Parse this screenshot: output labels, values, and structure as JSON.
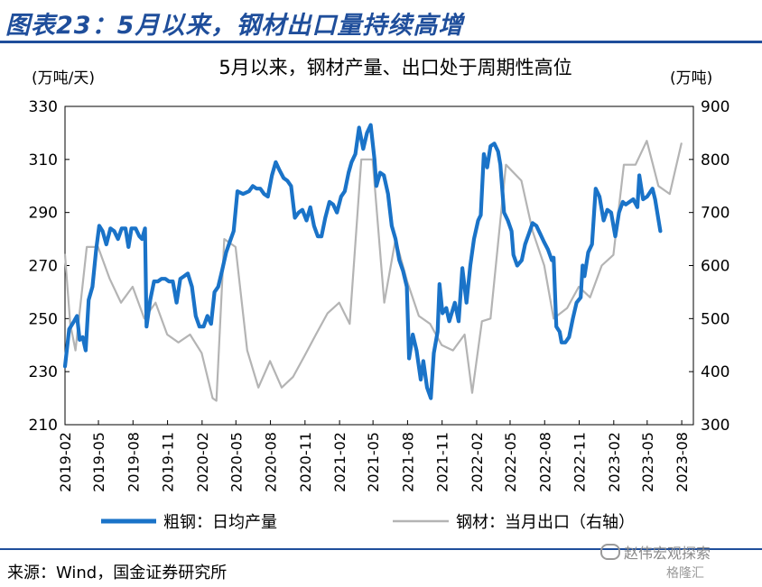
{
  "figure": {
    "title": "图表23：5月以来，钢材出口量持续高增",
    "source": "来源：Wind，国金证券研究所",
    "watermark": "赵伟宏观探索",
    "watermark2": "格隆汇"
  },
  "colors": {
    "steel_output": "#1a73c8",
    "steel_export": "#b4b4b4",
    "title": "#1f4e9b"
  },
  "chart_data": {
    "type": "line",
    "title": "5月以来，钢材产量、出口处于周期性高位",
    "y_left_unit": "(万吨/天)",
    "y_right_unit": "(万吨)",
    "y_left_lim": [
      210,
      330
    ],
    "y_left_ticks": [
      "210",
      "230",
      "250",
      "270",
      "290",
      "310",
      "330"
    ],
    "y_right_lim": [
      300,
      900
    ],
    "y_right_ticks": [
      "300",
      "400",
      "500",
      "600",
      "700",
      "800",
      "900"
    ],
    "x_lim": [
      "2019-02",
      "2023-09"
    ],
    "x_ticks": [
      "2019-02",
      "2019-05",
      "2019-08",
      "2019-11",
      "2020-02",
      "2020-05",
      "2020-08",
      "2020-11",
      "2021-02",
      "2021-05",
      "2021-08",
      "2021-11",
      "2022-02",
      "2022-05",
      "2022-08",
      "2022-11",
      "2023-02",
      "2023-05",
      "2023-08"
    ],
    "grid": false,
    "legend": "bottom",
    "series": [
      {
        "name": "粗钢：日均产量",
        "axis": "left",
        "points": [
          [
            "2019-02-01",
            232
          ],
          [
            "2019-02-12",
            246
          ],
          [
            "2019-02-25",
            249
          ],
          [
            "2019-03-05",
            251
          ],
          [
            "2019-03-12",
            242
          ],
          [
            "2019-03-20",
            243
          ],
          [
            "2019-03-28",
            238
          ],
          [
            "2019-04-05",
            257
          ],
          [
            "2019-04-15",
            262
          ],
          [
            "2019-04-25",
            276
          ],
          [
            "2019-05-03",
            285
          ],
          [
            "2019-05-12",
            283
          ],
          [
            "2019-05-22",
            278
          ],
          [
            "2019-06-02",
            284
          ],
          [
            "2019-06-12",
            283
          ],
          [
            "2019-06-22",
            280
          ],
          [
            "2019-07-02",
            284
          ],
          [
            "2019-07-12",
            284
          ],
          [
            "2019-07-20",
            277
          ],
          [
            "2019-07-28",
            284
          ],
          [
            "2019-08-08",
            284
          ],
          [
            "2019-08-18",
            281
          ],
          [
            "2019-08-25",
            280
          ],
          [
            "2019-09-02",
            284
          ],
          [
            "2019-09-06",
            247
          ],
          [
            "2019-09-16",
            257
          ],
          [
            "2019-09-26",
            264
          ],
          [
            "2019-10-06",
            264
          ],
          [
            "2019-10-16",
            265
          ],
          [
            "2019-10-26",
            265
          ],
          [
            "2019-11-05",
            264
          ],
          [
            "2019-11-15",
            264
          ],
          [
            "2019-11-25",
            256
          ],
          [
            "2019-12-05",
            265
          ],
          [
            "2019-12-15",
            266
          ],
          [
            "2019-12-25",
            267
          ],
          [
            "2020-01-05",
            262
          ],
          [
            "2020-01-15",
            251
          ],
          [
            "2020-01-25",
            247
          ],
          [
            "2020-02-05",
            247
          ],
          [
            "2020-02-15",
            251
          ],
          [
            "2020-02-25",
            248
          ],
          [
            "2020-03-05",
            260
          ],
          [
            "2020-03-15",
            262
          ],
          [
            "2020-03-25",
            268
          ],
          [
            "2020-04-05",
            275
          ],
          [
            "2020-04-15",
            279
          ],
          [
            "2020-04-25",
            283
          ],
          [
            "2020-05-05",
            298
          ],
          [
            "2020-05-20",
            297
          ],
          [
            "2020-06-05",
            298
          ],
          [
            "2020-06-15",
            300
          ],
          [
            "2020-06-25",
            299
          ],
          [
            "2020-07-05",
            299
          ],
          [
            "2020-07-15",
            297
          ],
          [
            "2020-07-25",
            296
          ],
          [
            "2020-08-05",
            304
          ],
          [
            "2020-08-15",
            309
          ],
          [
            "2020-08-25",
            306
          ],
          [
            "2020-09-05",
            303
          ],
          [
            "2020-09-15",
            302
          ],
          [
            "2020-09-25",
            300
          ],
          [
            "2020-10-05",
            288
          ],
          [
            "2020-10-15",
            290
          ],
          [
            "2020-10-25",
            291
          ],
          [
            "2020-11-05",
            287
          ],
          [
            "2020-11-15",
            292
          ],
          [
            "2020-11-25",
            285
          ],
          [
            "2020-12-05",
            281
          ],
          [
            "2020-12-15",
            281
          ],
          [
            "2020-12-25",
            288
          ],
          [
            "2021-01-05",
            294
          ],
          [
            "2021-01-15",
            293
          ],
          [
            "2021-01-25",
            290
          ],
          [
            "2021-02-05",
            296
          ],
          [
            "2021-02-15",
            298
          ],
          [
            "2021-02-25",
            305
          ],
          [
            "2021-03-05",
            309
          ],
          [
            "2021-03-15",
            312
          ],
          [
            "2021-03-25",
            322
          ],
          [
            "2021-04-05",
            314
          ],
          [
            "2021-04-15",
            320
          ],
          [
            "2021-04-25",
            323
          ],
          [
            "2021-05-05",
            310
          ],
          [
            "2021-05-10",
            300
          ],
          [
            "2021-05-20",
            305
          ],
          [
            "2021-05-30",
            304
          ],
          [
            "2021-06-10",
            297
          ],
          [
            "2021-06-20",
            285
          ],
          [
            "2021-06-30",
            280
          ],
          [
            "2021-07-10",
            272
          ],
          [
            "2021-07-20",
            268
          ],
          [
            "2021-07-30",
            262
          ],
          [
            "2021-08-05",
            235
          ],
          [
            "2021-08-15",
            244
          ],
          [
            "2021-08-25",
            238
          ],
          [
            "2021-09-05",
            227
          ],
          [
            "2021-09-12",
            234
          ],
          [
            "2021-09-22",
            224
          ],
          [
            "2021-10-02",
            220
          ],
          [
            "2021-10-10",
            237
          ],
          [
            "2021-10-20",
            245
          ],
          [
            "2021-10-25",
            263
          ],
          [
            "2021-11-02",
            252
          ],
          [
            "2021-11-12",
            254
          ],
          [
            "2021-11-20",
            249
          ],
          [
            "2021-12-05",
            256
          ],
          [
            "2021-12-15",
            249
          ],
          [
            "2021-12-25",
            269
          ],
          [
            "2022-01-05",
            256
          ],
          [
            "2022-01-15",
            270
          ],
          [
            "2022-01-25",
            280
          ],
          [
            "2022-02-05",
            287
          ],
          [
            "2022-02-12",
            289
          ],
          [
            "2022-02-20",
            312
          ],
          [
            "2022-03-01",
            307
          ],
          [
            "2022-03-10",
            315
          ],
          [
            "2022-03-20",
            316
          ],
          [
            "2022-03-30",
            313
          ],
          [
            "2022-04-05",
            308
          ],
          [
            "2022-04-15",
            290
          ],
          [
            "2022-04-25",
            287
          ],
          [
            "2022-05-05",
            283
          ],
          [
            "2022-05-10",
            274
          ],
          [
            "2022-05-20",
            270
          ],
          [
            "2022-06-01",
            272
          ],
          [
            "2022-06-10",
            278
          ],
          [
            "2022-06-20",
            282
          ],
          [
            "2022-06-30",
            286
          ],
          [
            "2022-07-10",
            285
          ],
          [
            "2022-07-20",
            282
          ],
          [
            "2022-07-30",
            279
          ],
          [
            "2022-08-10",
            276
          ],
          [
            "2022-08-20",
            272
          ],
          [
            "2022-08-25",
            273
          ],
          [
            "2022-09-01",
            247
          ],
          [
            "2022-09-10",
            245
          ],
          [
            "2022-09-15",
            241
          ],
          [
            "2022-09-25",
            241
          ],
          [
            "2022-10-05",
            243
          ],
          [
            "2022-10-15",
            250
          ],
          [
            "2022-10-25",
            256
          ],
          [
            "2022-11-05",
            258
          ],
          [
            "2022-11-10",
            270
          ],
          [
            "2022-11-15",
            266
          ],
          [
            "2022-11-25",
            275
          ],
          [
            "2022-12-05",
            278
          ],
          [
            "2022-12-15",
            299
          ],
          [
            "2022-12-25",
            296
          ],
          [
            "2023-01-05",
            287
          ],
          [
            "2023-01-15",
            291
          ],
          [
            "2023-01-25",
            290
          ],
          [
            "2023-02-05",
            281
          ],
          [
            "2023-02-15",
            290
          ],
          [
            "2023-02-25",
            294
          ],
          [
            "2023-03-05",
            293
          ],
          [
            "2023-03-15",
            294
          ],
          [
            "2023-03-25",
            295
          ],
          [
            "2023-04-05",
            292
          ],
          [
            "2023-04-10",
            304
          ],
          [
            "2023-04-20",
            295
          ],
          [
            "2023-05-01",
            296
          ],
          [
            "2023-05-15",
            299
          ],
          [
            "2023-05-22",
            295
          ],
          [
            "2023-06-05",
            283
          ]
        ]
      },
      {
        "name": "钢材：当月出口（右轴）",
        "axis": "right",
        "points": [
          [
            "2019-02-01",
            620
          ],
          [
            "2019-02-15",
            490
          ],
          [
            "2019-03-01",
            440
          ],
          [
            "2019-03-31",
            635
          ],
          [
            "2019-04-30",
            635
          ],
          [
            "2019-05-31",
            575
          ],
          [
            "2019-06-30",
            530
          ],
          [
            "2019-07-31",
            560
          ],
          [
            "2019-08-31",
            500
          ],
          [
            "2019-09-30",
            530
          ],
          [
            "2019-10-31",
            470
          ],
          [
            "2019-11-30",
            455
          ],
          [
            "2019-12-31",
            470
          ],
          [
            "2020-01-31",
            435
          ],
          [
            "2020-02-29",
            350
          ],
          [
            "2020-03-10",
            345
          ],
          [
            "2020-03-31",
            650
          ],
          [
            "2020-04-30",
            635
          ],
          [
            "2020-05-31",
            440
          ],
          [
            "2020-06-30",
            370
          ],
          [
            "2020-07-31",
            420
          ],
          [
            "2020-08-31",
            370
          ],
          [
            "2020-09-30",
            390
          ],
          [
            "2020-10-31",
            430
          ],
          [
            "2020-11-30",
            470
          ],
          [
            "2020-12-31",
            510
          ],
          [
            "2021-01-31",
            530
          ],
          [
            "2021-02-28",
            490
          ],
          [
            "2021-03-31",
            800
          ],
          [
            "2021-04-30",
            800
          ],
          [
            "2021-05-31",
            530
          ],
          [
            "2021-06-30",
            650
          ],
          [
            "2021-07-31",
            570
          ],
          [
            "2021-08-31",
            505
          ],
          [
            "2021-09-30",
            490
          ],
          [
            "2021-10-31",
            450
          ],
          [
            "2021-11-30",
            440
          ],
          [
            "2021-12-31",
            470
          ],
          [
            "2022-01-20",
            360
          ],
          [
            "2022-02-15",
            495
          ],
          [
            "2022-03-10",
            500
          ],
          [
            "2022-04-20",
            790
          ],
          [
            "2022-05-31",
            760
          ],
          [
            "2022-06-30",
            665
          ],
          [
            "2022-07-31",
            600
          ],
          [
            "2022-08-25",
            500
          ],
          [
            "2022-09-30",
            520
          ],
          [
            "2022-10-31",
            560
          ],
          [
            "2022-11-30",
            540
          ],
          [
            "2022-12-31",
            600
          ],
          [
            "2023-01-31",
            620
          ],
          [
            "2023-02-28",
            790
          ],
          [
            "2023-03-31",
            790
          ],
          [
            "2023-04-30",
            835
          ],
          [
            "2023-05-31",
            750
          ],
          [
            "2023-06-30",
            735
          ],
          [
            "2023-07-31",
            830
          ]
        ]
      }
    ]
  }
}
